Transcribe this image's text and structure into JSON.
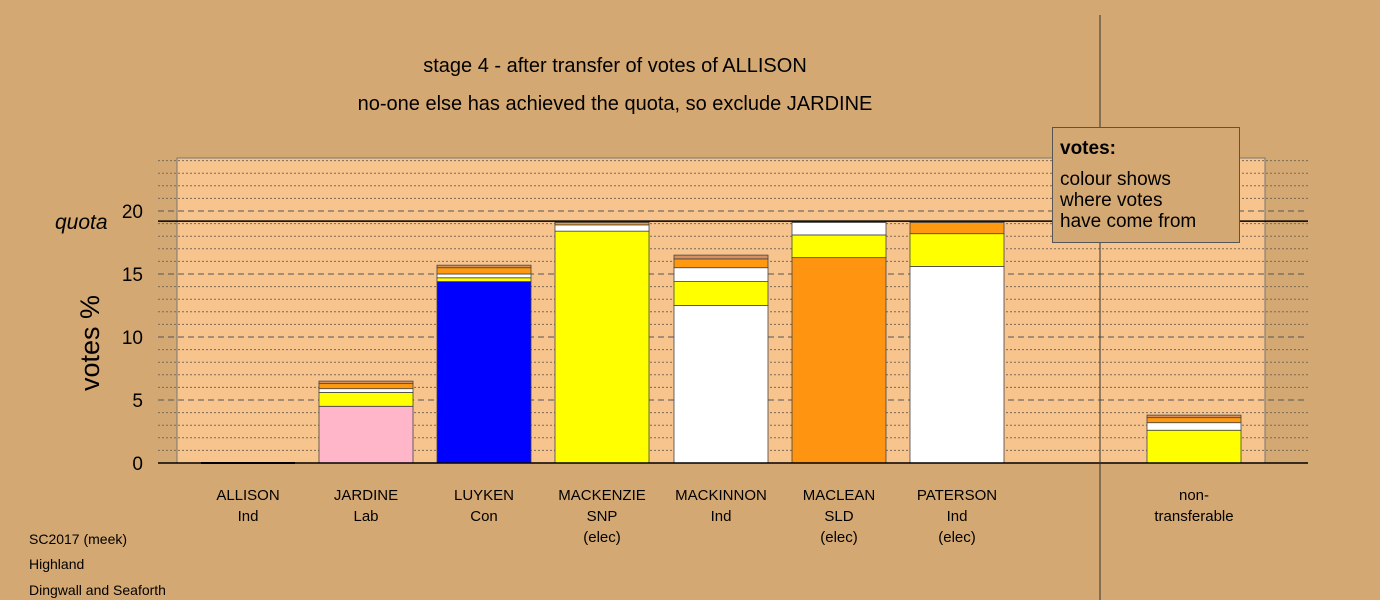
{
  "chart_data": {
    "type": "bar",
    "stacked": true,
    "title": "stage 4 - after transfer of votes of ALLISON",
    "subtitle": "no-one else has achieved the quota, so exclude JARDINE",
    "ylabel": "votes %",
    "ylim": [
      0,
      24
    ],
    "yticks": [
      "0",
      "5",
      "10",
      "15",
      "20"
    ],
    "quota": 19.2,
    "quota_label": "quota",
    "grid": true,
    "categories": [
      {
        "name": "ALLISON",
        "party": "Ind",
        "status": ""
      },
      {
        "name": "JARDINE",
        "party": "Lab",
        "status": ""
      },
      {
        "name": "LUYKEN",
        "party": "Con",
        "status": ""
      },
      {
        "name": "MACKENZIE",
        "party": "SNP",
        "status": "(elec)"
      },
      {
        "name": "MACKINNON",
        "party": "Ind",
        "status": ""
      },
      {
        "name": "MACLEAN",
        "party": "SLD",
        "status": "(elec)"
      },
      {
        "name": "PATERSON",
        "party": "Ind",
        "status": "(elec)"
      },
      {
        "name": "non-",
        "party": "transferable",
        "status": ""
      }
    ],
    "stacks": [
      [],
      [
        {
          "value": 4.5,
          "color": "#ffb6c8"
        },
        {
          "value": 1.1,
          "color": "#ffff00"
        },
        {
          "value": 0.3,
          "color": "#ffffff"
        },
        {
          "value": 0.4,
          "color": "#ff9a10"
        },
        {
          "value": 0.2,
          "color": "#d89060"
        }
      ],
      [
        {
          "value": 14.4,
          "color": "#0000ff"
        },
        {
          "value": 0.3,
          "color": "#ffff00"
        },
        {
          "value": 0.3,
          "color": "#ffffff"
        },
        {
          "value": 0.5,
          "color": "#ff9a10"
        },
        {
          "value": 0.2,
          "color": "#d89060"
        }
      ],
      [
        {
          "value": 18.4,
          "color": "#ffff00"
        },
        {
          "value": 0.5,
          "color": "#ffffff"
        },
        {
          "value": 0.2,
          "color": "#ff9a10"
        },
        {
          "value": 0.1,
          "color": "#d89060"
        }
      ],
      [
        {
          "value": 12.5,
          "color": "#ffffff"
        },
        {
          "value": 1.9,
          "color": "#ffff00"
        },
        {
          "value": 1.1,
          "color": "#ffffff"
        },
        {
          "value": 0.7,
          "color": "#ff9a10"
        },
        {
          "value": 0.3,
          "color": "#d89060"
        }
      ],
      [
        {
          "value": 16.3,
          "color": "#ff9410"
        },
        {
          "value": 1.8,
          "color": "#ffff00"
        },
        {
          "value": 1.0,
          "color": "#ffffff"
        },
        {
          "value": 0.1,
          "color": "#d89060"
        }
      ],
      [
        {
          "value": 15.6,
          "color": "#ffffff"
        },
        {
          "value": 2.6,
          "color": "#ffff00"
        },
        {
          "value": 0.9,
          "color": "#ff9a10"
        },
        {
          "value": 0.1,
          "color": "#d89060"
        }
      ],
      [
        {
          "value": 2.6,
          "color": "#ffff00"
        },
        {
          "value": 0.6,
          "color": "#ffffff"
        },
        {
          "value": 0.4,
          "color": "#ff9a10"
        },
        {
          "value": 0.2,
          "color": "#d89060"
        }
      ]
    ],
    "colors": {
      "background": "#d4a872",
      "plot_area": "#f7c48e"
    }
  },
  "legend": {
    "title": "votes:",
    "text": "colour shows\nwhere votes\nhave come from"
  },
  "footer": {
    "line1": "SC2017 (meek)",
    "line2": "Highland",
    "line3": "Dingwall and Seaforth"
  }
}
